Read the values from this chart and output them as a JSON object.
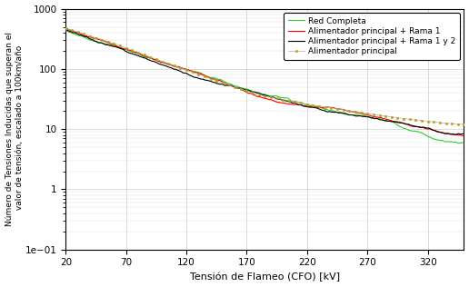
{
  "xlabel": "Tensión de Flameo (CFO) [kV]",
  "ylabel": "Número de Tensiones Inducidas que superan el\n valor de tensión, escalado a 100km/año",
  "xlim": [
    20,
    350
  ],
  "ylim": [
    0.1,
    1000
  ],
  "xticks": [
    20,
    70,
    120,
    170,
    220,
    270,
    320
  ],
  "color_rc": "#33cc33",
  "color_r1": "#ff0000",
  "color_r12": "#000000",
  "color_ap": "#cc99cc",
  "color_ap_marker": "#aaaa00",
  "label_rc": "Red Completa",
  "label_r1": "Alimentador principal + Rama 1",
  "label_r12": "Alimentador principal + Rama 1 y 2",
  "label_ap": "Alimentador principal",
  "xp_rc": [
    20,
    60,
    100,
    140,
    180,
    220,
    250,
    270,
    290,
    305,
    320,
    335,
    350
  ],
  "yp_rc": [
    500,
    270,
    140,
    72,
    38,
    25,
    18,
    15,
    12,
    9,
    7,
    5.5,
    5.0
  ],
  "xp_r1": [
    20,
    60,
    100,
    140,
    180,
    220,
    250,
    270,
    290,
    305,
    320,
    335,
    350
  ],
  "yp_r1": [
    450,
    255,
    130,
    67,
    36,
    24,
    19,
    16,
    14,
    12,
    11,
    9.5,
    8.5
  ],
  "xp_r12": [
    20,
    60,
    100,
    140,
    180,
    220,
    250,
    270,
    290,
    305,
    320,
    335,
    350
  ],
  "yp_r12": [
    440,
    248,
    125,
    65,
    35,
    23,
    18,
    15,
    13,
    11.5,
    10,
    8.5,
    8.0
  ],
  "xp_ap": [
    20,
    60,
    100,
    140,
    180,
    220,
    250,
    270,
    290,
    305,
    320,
    335,
    350
  ],
  "yp_ap": [
    470,
    265,
    133,
    69,
    37,
    26,
    21,
    18,
    16,
    14.5,
    13.5,
    12.5,
    12.0
  ]
}
